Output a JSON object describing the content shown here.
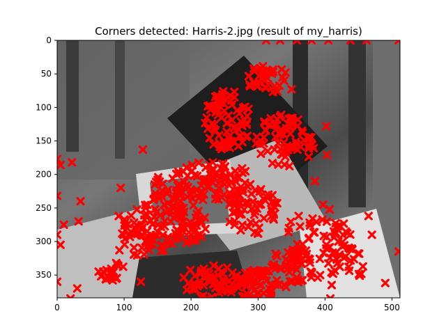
{
  "chart_data": {
    "type": "scatter",
    "title": "Corners detected: Harris-2.jpg (result of my_harris)",
    "xlabel": "",
    "ylabel": "",
    "xlim": [
      0,
      512
    ],
    "ylim": [
      384,
      0
    ],
    "x_ticks": [
      0,
      100,
      200,
      300,
      400,
      500
    ],
    "y_ticks": [
      0,
      50,
      100,
      150,
      200,
      250,
      300,
      350
    ],
    "grid": false,
    "marker": "x",
    "marker_color": "#ff0000",
    "background": "grayscale photograph",
    "clusters": [
      {
        "cx": 315,
        "cy": 58,
        "rx": 32,
        "ry": 22,
        "n": 40
      },
      {
        "cx": 255,
        "cy": 120,
        "rx": 35,
        "ry": 45,
        "n": 80
      },
      {
        "cx": 340,
        "cy": 150,
        "rx": 45,
        "ry": 40,
        "n": 70
      },
      {
        "cx": 230,
        "cy": 210,
        "rx": 60,
        "ry": 30,
        "n": 90
      },
      {
        "cx": 160,
        "cy": 260,
        "rx": 30,
        "ry": 60,
        "n": 80
      },
      {
        "cx": 120,
        "cy": 290,
        "rx": 25,
        "ry": 40,
        "n": 40
      },
      {
        "cx": 200,
        "cy": 275,
        "rx": 25,
        "ry": 30,
        "n": 40
      },
      {
        "cx": 290,
        "cy": 250,
        "rx": 40,
        "ry": 40,
        "n": 70
      },
      {
        "cx": 390,
        "cy": 300,
        "rx": 50,
        "ry": 55,
        "n": 70
      },
      {
        "cx": 350,
        "cy": 340,
        "rx": 35,
        "ry": 30,
        "n": 40
      },
      {
        "cx": 230,
        "cy": 360,
        "rx": 45,
        "ry": 25,
        "n": 70
      },
      {
        "cx": 300,
        "cy": 365,
        "rx": 35,
        "ry": 25,
        "n": 60
      },
      {
        "cx": 80,
        "cy": 340,
        "rx": 20,
        "ry": 20,
        "n": 20
      },
      {
        "cx": 440,
        "cy": 330,
        "rx": 20,
        "ry": 30,
        "n": 15
      }
    ],
    "points": [
      [
        312,
        0
      ],
      [
        333,
        0
      ],
      [
        358,
        0
      ],
      [
        380,
        0
      ],
      [
        405,
        0
      ],
      [
        438,
        0
      ],
      [
        462,
        0
      ],
      [
        510,
        0
      ],
      [
        350,
        73
      ],
      [
        402,
        128
      ],
      [
        403,
        171
      ],
      [
        0,
        177
      ],
      [
        5,
        186
      ],
      [
        22,
        182
      ],
      [
        0,
        232
      ],
      [
        35,
        240
      ],
      [
        32,
        270
      ],
      [
        10,
        275
      ],
      [
        0,
        290
      ],
      [
        5,
        305
      ],
      [
        128,
        163
      ],
      [
        125,
        360
      ],
      [
        95,
        220
      ],
      [
        92,
        262
      ],
      [
        93,
        313
      ],
      [
        62,
        345
      ],
      [
        30,
        370
      ],
      [
        0,
        360
      ],
      [
        20,
        385
      ],
      [
        412,
        348
      ],
      [
        410,
        365
      ],
      [
        408,
        385
      ],
      [
        470,
        290
      ],
      [
        510,
        315
      ],
      [
        490,
        362
      ],
      [
        465,
        262
      ],
      [
        420,
        300
      ],
      [
        385,
        210
      ],
      [
        397,
        245
      ]
    ]
  }
}
